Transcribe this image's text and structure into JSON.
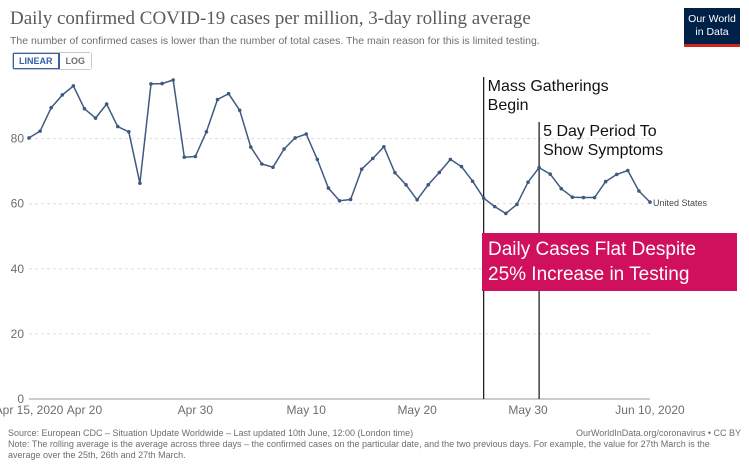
{
  "title": "Daily confirmed COVID-19 cases per million, 3-day rolling average",
  "subtitle": "The number of confirmed cases is lower than the number of total cases. The main reason for this is limited testing.",
  "logo": {
    "line1": "Our World",
    "line2": "in Data"
  },
  "scale_toggle": {
    "linear": "LINEAR",
    "log": "LOG"
  },
  "footer": {
    "source": "Source: European CDC – Situation Update Worldwide – Last updated 10th June, 12:00 (London time)",
    "link": "OurWorldInData.org/coronavirus • CC BY",
    "note": "Note: The rolling average is the average across three days – the confirmed cases on the particular date, and the two previous days. For example, the value for 27th March is the average over the 25th, 26th and 27th March."
  },
  "colors": {
    "line": "#3f5a80",
    "annotation_bg": "#d0105c",
    "grid": "#dddddd"
  },
  "chart_data": {
    "type": "line",
    "x_start": "2020-04-15",
    "x_end": "2020-06-10",
    "xtick_labels": [
      "Apr 15, 2020",
      "Apr 20",
      "Apr 30",
      "May 10",
      "May 20",
      "May 30",
      "Jun 10, 2020"
    ],
    "xtick_days": [
      0,
      5,
      15,
      25,
      35,
      45,
      56
    ],
    "yticks": [
      0,
      20,
      40,
      60,
      80
    ],
    "ylim": [
      0,
      100
    ],
    "grid": "horizontal dashed",
    "series": [
      {
        "name": "United States",
        "values": [
          80.2,
          82.3,
          89.5,
          93.4,
          96.2,
          89.2,
          86.3,
          90.6,
          83.7,
          82.1,
          66.3,
          96.8,
          96.9,
          98.0,
          74.3,
          74.5,
          82.1,
          92.0,
          93.8,
          88.7,
          77.4,
          72.2,
          71.2,
          76.8,
          80.2,
          81.4,
          73.6,
          64.8,
          60.9,
          61.3,
          70.6,
          73.9,
          77.5,
          69.5,
          65.8,
          61.2,
          65.8,
          69.6,
          73.6,
          71.4,
          66.9,
          61.7,
          59.1,
          57.0,
          59.8,
          66.6,
          71.1,
          69.1,
          64.6,
          62.0,
          61.9,
          61.9,
          66.8,
          69.0,
          70.2,
          63.9,
          60.5
        ]
      }
    ],
    "annotations": [
      {
        "x": "2020-05-26",
        "text_lines": [
          "Mass Gatherings",
          "Begin"
        ]
      },
      {
        "x": "2020-05-31",
        "text_lines": [
          "5 Day Period To",
          "Show Symptoms"
        ]
      }
    ],
    "callout": {
      "lines": [
        "Daily Cases Flat Despite",
        "25% Increase in Testing"
      ]
    }
  }
}
